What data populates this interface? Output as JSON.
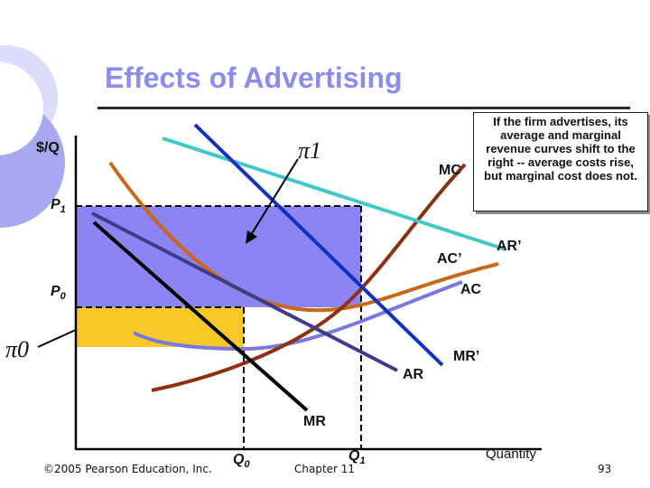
{
  "slide": {
    "title": "Effects of Advertising",
    "page_number": "93",
    "copyright": "©2005 Pearson Education, Inc.",
    "chapter": "Chapter 11"
  },
  "diagram": {
    "y_axis_label": "$/Q",
    "x_axis_label": "Quantity",
    "price_labels": {
      "p1": "P",
      "p1_sub": "1",
      "p0": "P",
      "p0_sub": "0"
    },
    "quantity_labels": {
      "q0": "Q",
      "q0_sub": "0",
      "q1": "Q",
      "q1_sub": "1"
    },
    "profit_labels": {
      "pi1": "π1",
      "pi0": "π0"
    },
    "curve_labels": {
      "mc": "MC",
      "ac_prime": "AC’",
      "ar_prime": "AR’",
      "ac": "AC",
      "mr_prime": "MR’",
      "ar": "AR",
      "mr": "MR"
    },
    "callout": "If the firm advertises, its average and marginal revenue curves shift to the right -- average costs rise, but marginal cost does not.",
    "colors": {
      "title": "#8c8cf0",
      "profit_pi1_area": "#8c84f4",
      "profit_pi0_area": "#f8c828",
      "ar_prime": "#40c8c8",
      "mr_prime": "#1430c0",
      "ar": "#3c3c88",
      "mr": "#000000",
      "mc": "#8c3010",
      "ac_prime": "#c86818",
      "ac": "#7878e0",
      "background_circles": "#a8a8f0"
    }
  }
}
